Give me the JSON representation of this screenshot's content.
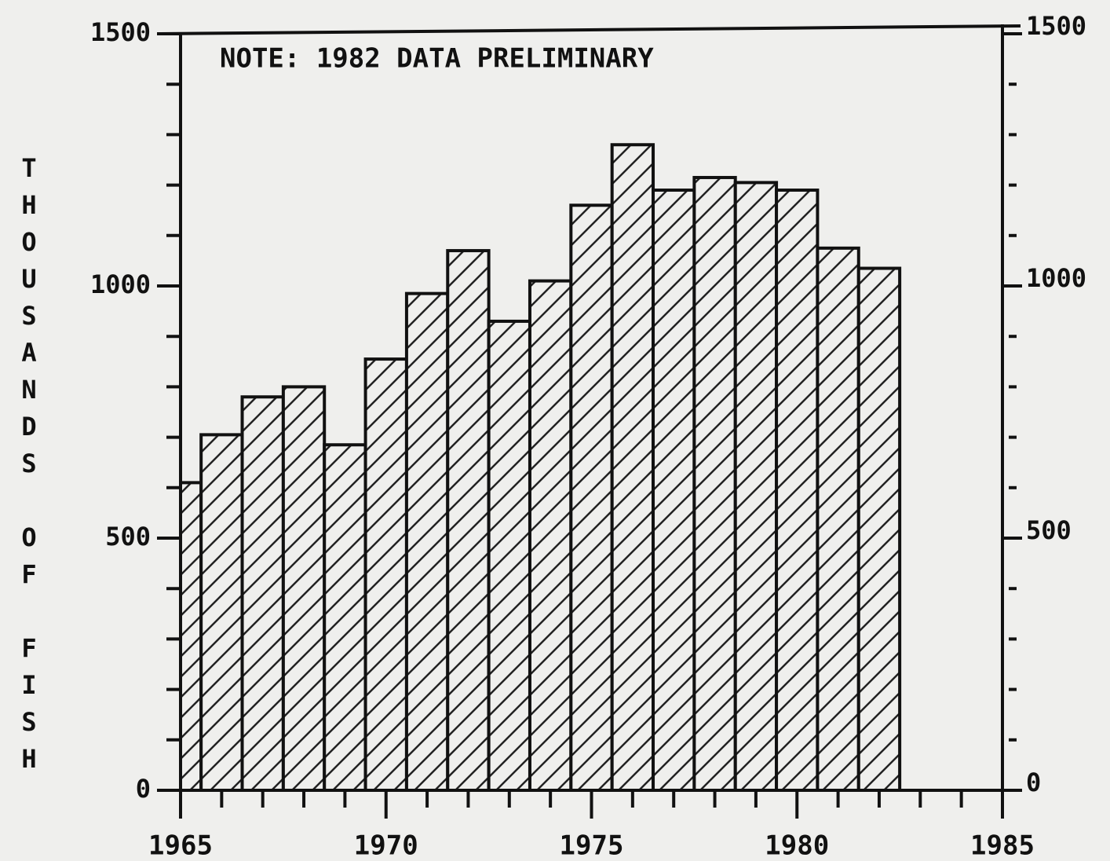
{
  "chart_data": {
    "type": "bar",
    "y_label": "THOUSANDS OF FISH",
    "annotation": "NOTE: 1982 DATA PRELIMINARY",
    "x": [
      1965,
      1966,
      1967,
      1968,
      1969,
      1970,
      1971,
      1972,
      1973,
      1974,
      1975,
      1976,
      1977,
      1978,
      1979,
      1980,
      1981,
      1982
    ],
    "values": [
      610,
      705,
      780,
      800,
      685,
      855,
      985,
      1070,
      930,
      1010,
      1160,
      1280,
      1190,
      1215,
      1205,
      1190,
      1075,
      1035
    ],
    "xlim": [
      1965,
      1985
    ],
    "xticks": [
      1965,
      1970,
      1975,
      1980,
      1985
    ],
    "xminorticks": [
      1966,
      1967,
      1968,
      1969,
      1971,
      1972,
      1973,
      1974,
      1976,
      1977,
      1978,
      1979,
      1981,
      1982,
      1983,
      1984
    ],
    "ylim": [
      0,
      1500
    ],
    "yticks": [
      0,
      500,
      1000,
      1500
    ],
    "yminorticks": [
      100,
      200,
      300,
      400,
      600,
      700,
      800,
      900,
      1100,
      1200,
      1300,
      1400
    ],
    "y2lim": [
      0,
      1500
    ],
    "y2ticks": [
      0,
      500,
      1000,
      1500
    ],
    "hatch": true
  }
}
